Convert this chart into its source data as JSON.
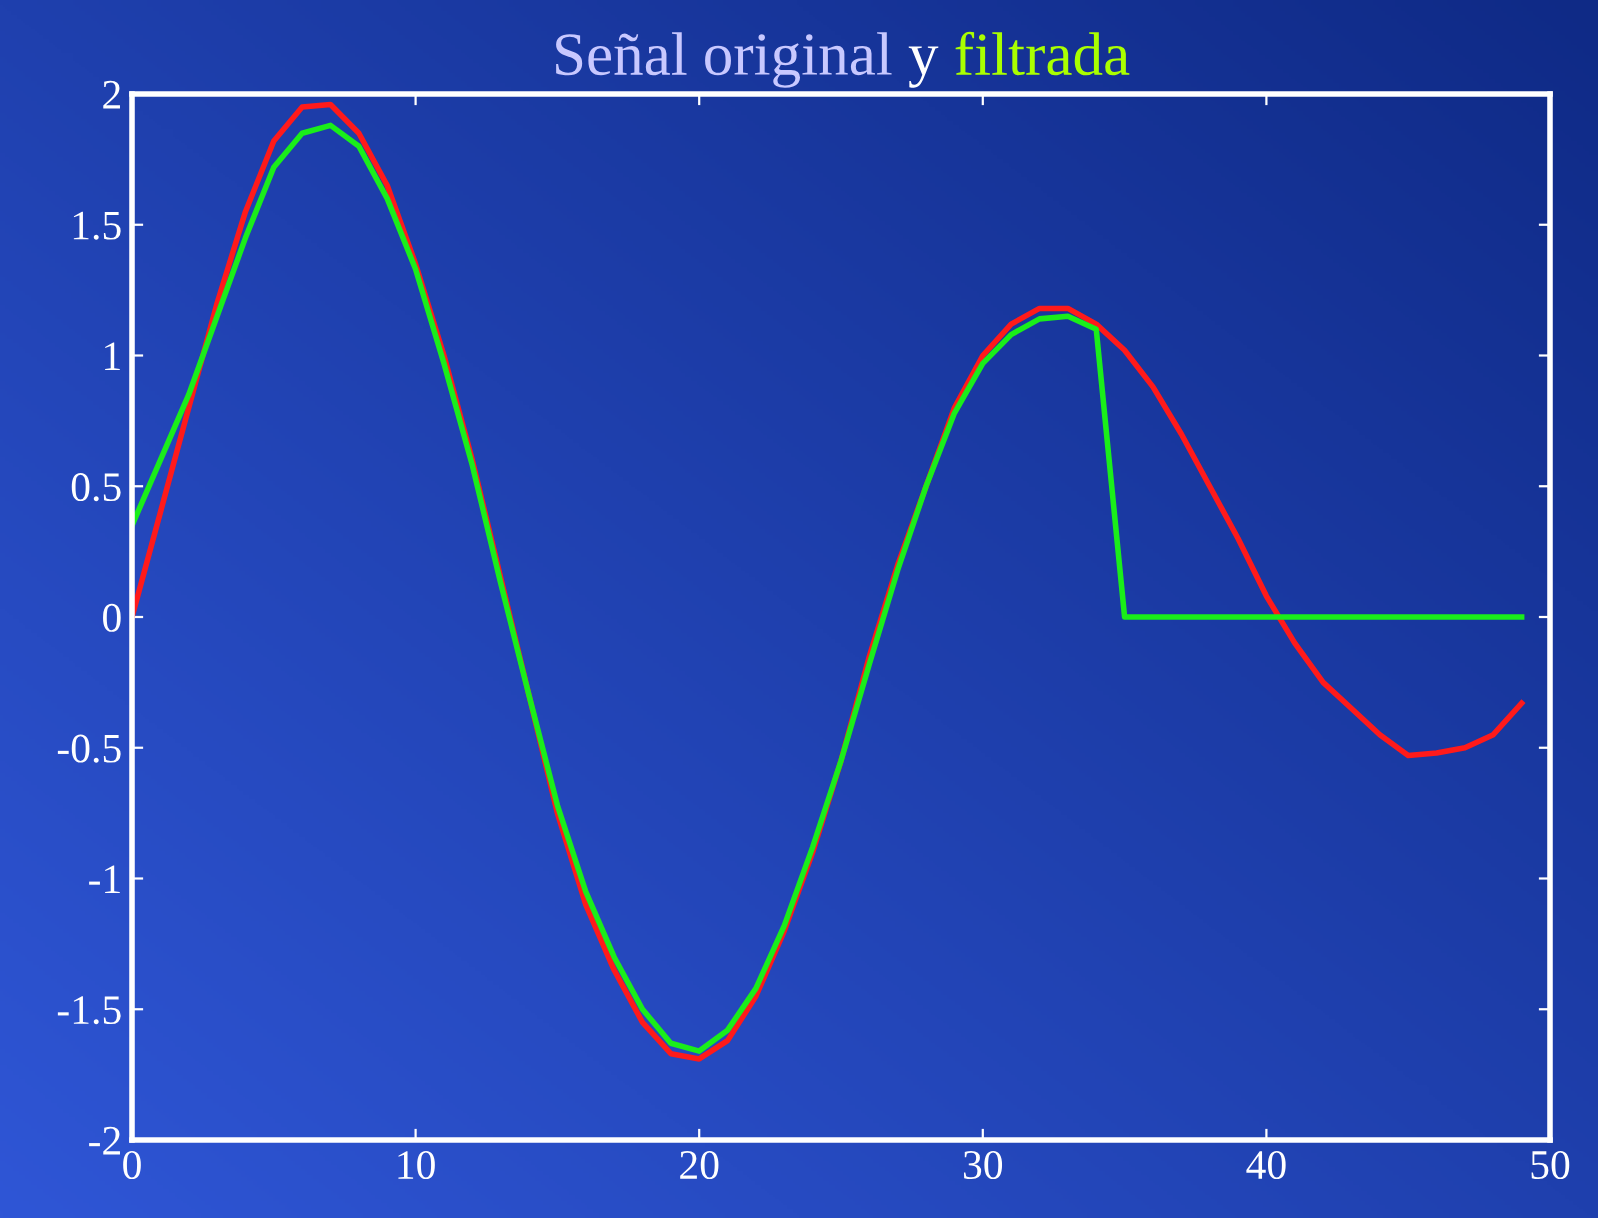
{
  "chart_data": {
    "type": "line",
    "title": "Señal original y filtrada",
    "x": [
      0,
      1,
      2,
      3,
      4,
      5,
      6,
      7,
      8,
      9,
      10,
      11,
      12,
      13,
      14,
      15,
      16,
      17,
      18,
      19,
      20,
      21,
      22,
      23,
      24,
      25,
      26,
      27,
      28,
      29,
      30,
      31,
      32,
      33,
      34,
      35,
      36,
      37,
      38,
      39,
      40,
      41,
      42,
      43,
      44,
      45,
      46,
      47,
      48,
      49
    ],
    "series": [
      {
        "color": "#ff1a1a",
        "values": [
          0,
          0.4,
          0.8,
          1.2,
          1.55,
          1.82,
          1.95,
          1.96,
          1.85,
          1.65,
          1.35,
          1.0,
          0.6,
          0.15,
          -0.3,
          -0.75,
          -1.1,
          -1.35,
          -1.55,
          -1.67,
          -1.69,
          -1.62,
          -1.45,
          -1.2,
          -0.9,
          -0.55,
          -0.15,
          0.2,
          0.5,
          0.8,
          1.0,
          1.12,
          1.18,
          1.18,
          1.12,
          1.02,
          0.88,
          0.7,
          0.5,
          0.3,
          0.08,
          -0.1,
          -0.25,
          -0.35,
          -0.45,
          -0.53,
          -0.52,
          -0.5,
          -0.45,
          -0.33
        ]
      },
      {
        "color": "#1aee1a",
        "values": [
          0.35,
          0.6,
          0.85,
          1.15,
          1.45,
          1.72,
          1.85,
          1.88,
          1.8,
          1.6,
          1.33,
          0.97,
          0.58,
          0.13,
          -0.3,
          -0.72,
          -1.05,
          -1.3,
          -1.5,
          -1.63,
          -1.66,
          -1.58,
          -1.42,
          -1.18,
          -0.88,
          -0.55,
          -0.18,
          0.18,
          0.5,
          0.78,
          0.97,
          1.08,
          1.14,
          1.15,
          1.1,
          0,
          0,
          0,
          0,
          0,
          0,
          0,
          0,
          0,
          0,
          0,
          0,
          0,
          0,
          0
        ]
      }
    ],
    "xlim": [
      0,
      50
    ],
    "xticks": [
      0,
      10,
      20,
      30,
      40,
      50
    ],
    "ylim": [
      -2,
      2
    ],
    "yticks": [
      {
        "value": -2,
        "label": "-2"
      },
      {
        "value": -1.5,
        "label": "-1.5"
      },
      {
        "value": -1,
        "label": "-1"
      },
      {
        "value": -0.5,
        "label": "-0.5"
      },
      0,
      0.5,
      1,
      1.5,
      2
    ],
    "grid": false,
    "legend": false,
    "marker": "none",
    "line_style": "solid"
  }
}
